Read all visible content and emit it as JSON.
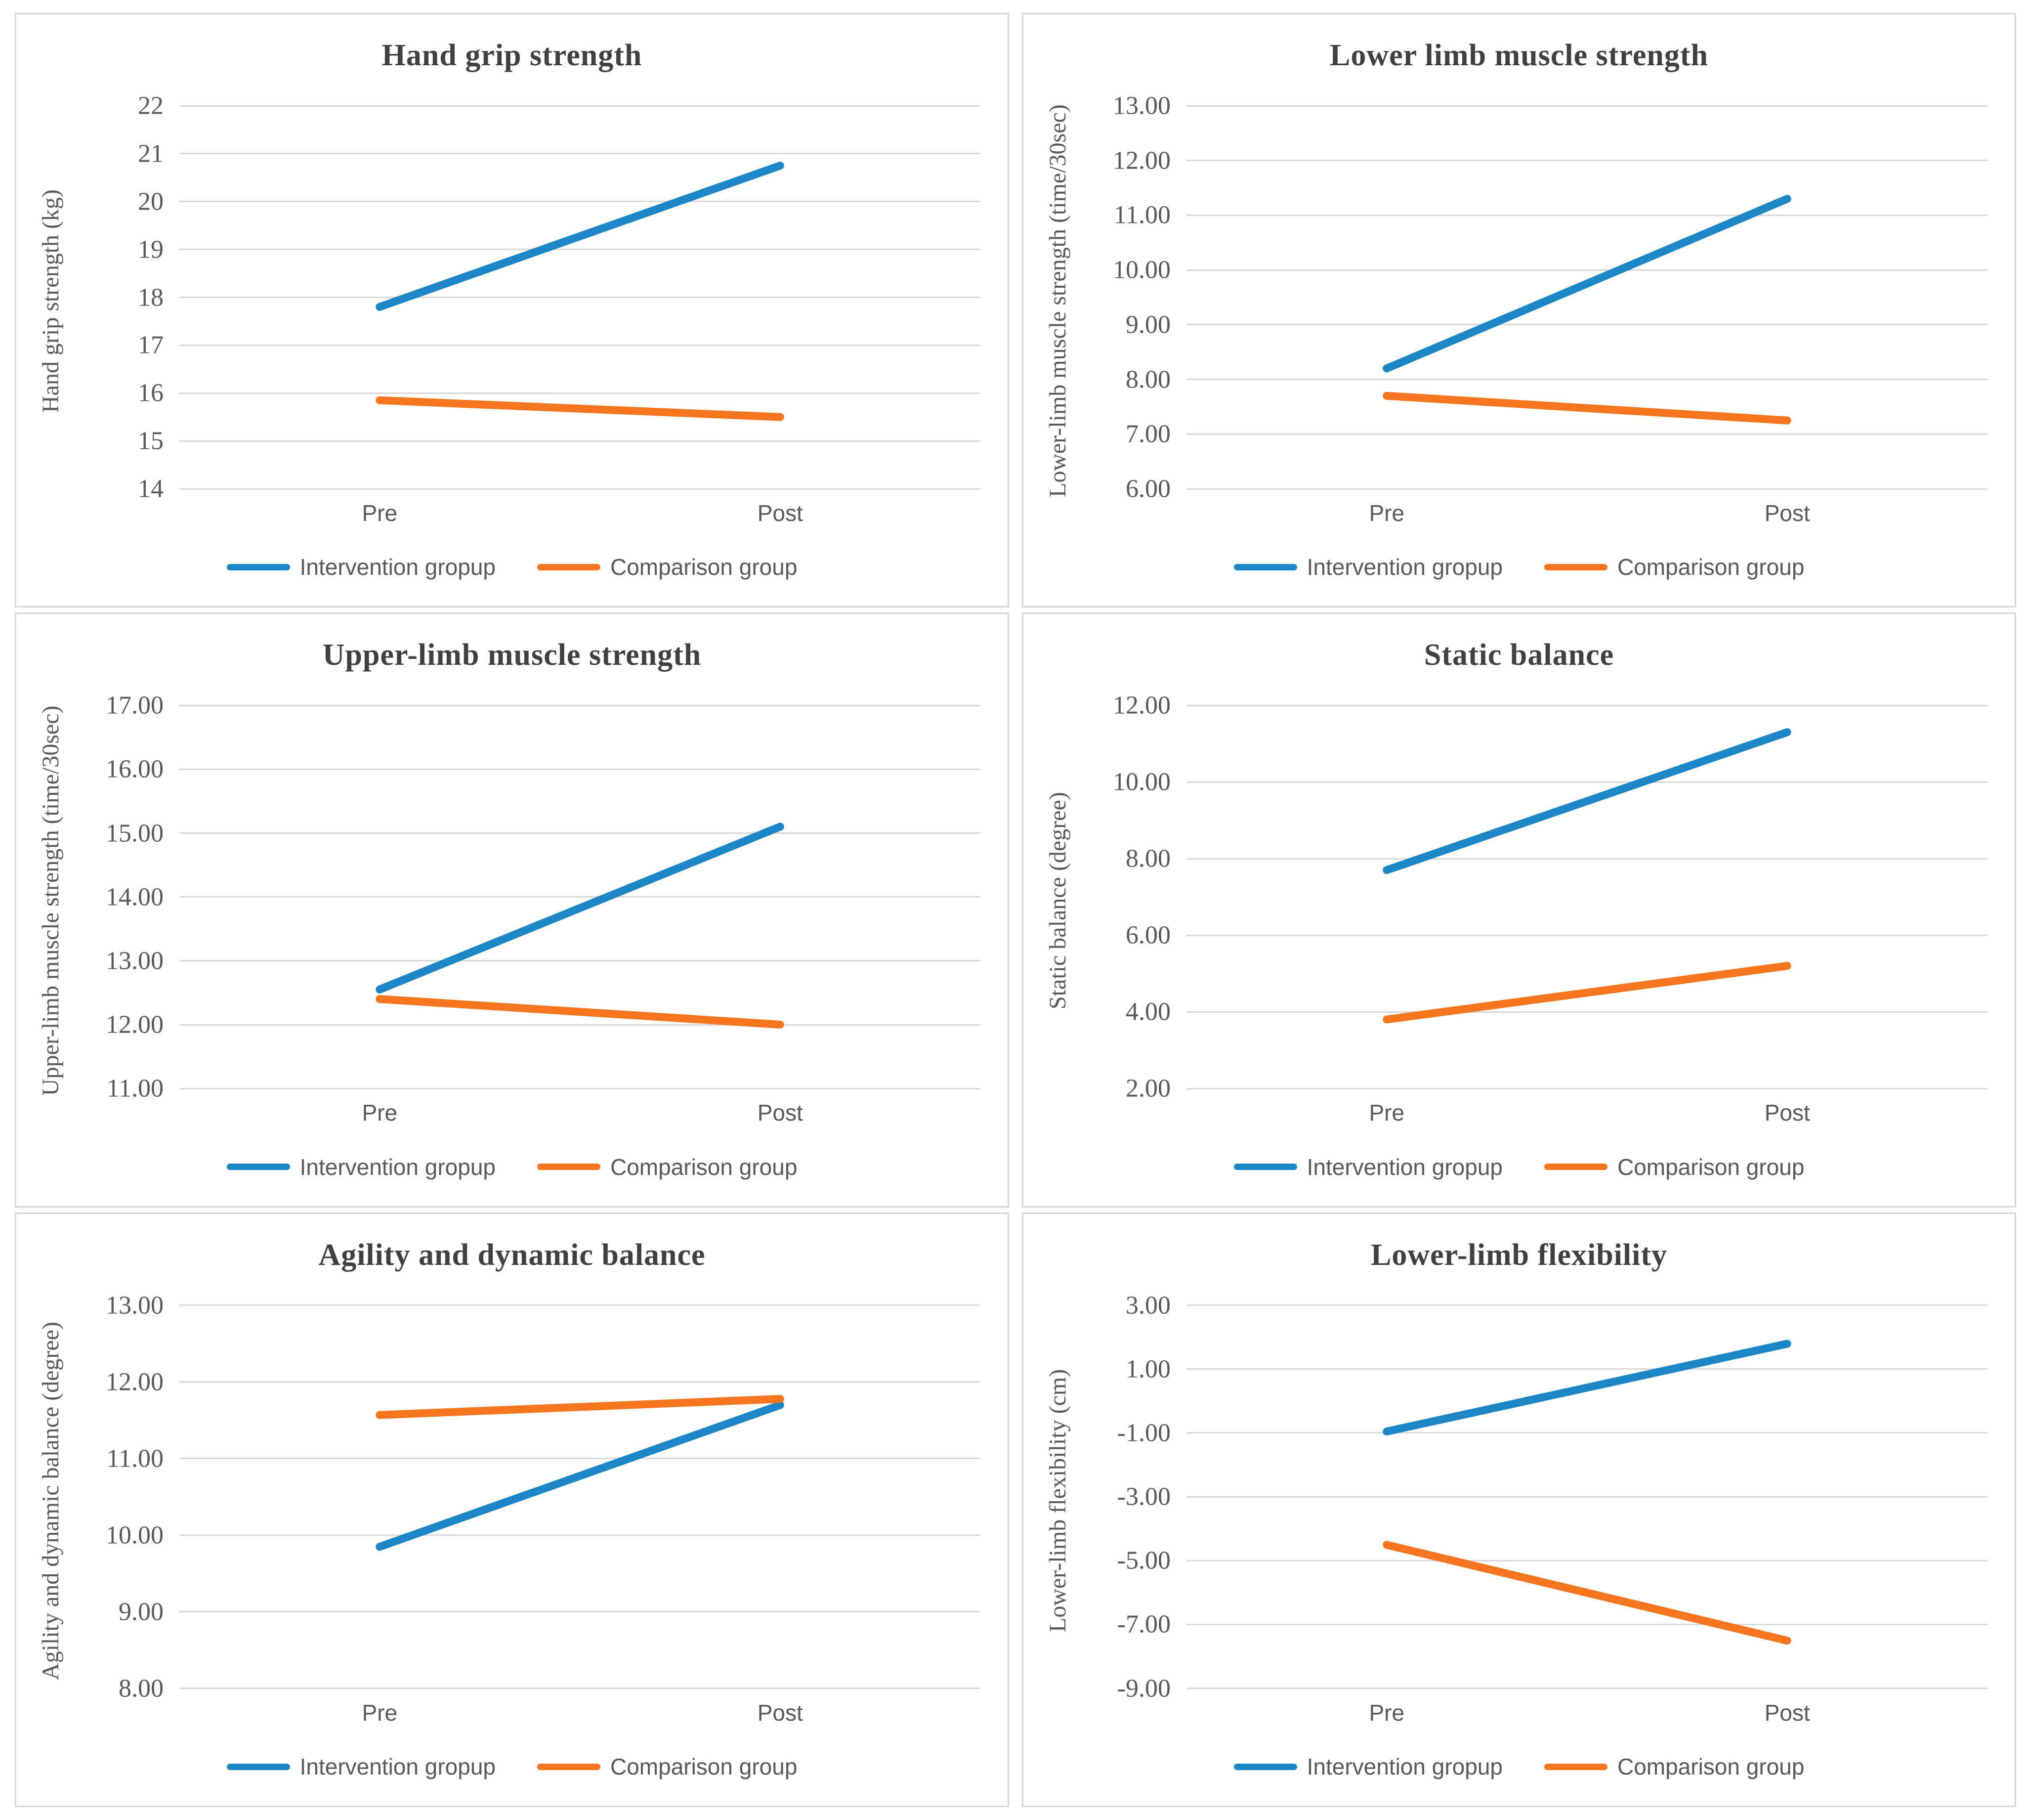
{
  "page": {
    "background": "#ffffff"
  },
  "colors": {
    "intervention": "#1d86c7",
    "comparison": "#f5761e",
    "gridline": "#d9d9d9",
    "axis_text": "#595959",
    "title_text": "#404040",
    "panel_border": "#d6d6d6"
  },
  "categories": [
    "Pre",
    "Post"
  ],
  "chart_data": [
    {
      "type": "line",
      "title": "Hand grip strength",
      "ylabel": "Hand grip strength (kg)",
      "xlabel": "",
      "categories": [
        "Pre",
        "Post"
      ],
      "ylim": [
        14,
        22
      ],
      "grid": true,
      "legend_position": "bottom",
      "y_ticks": [
        {
          "value": 14,
          "label": "14"
        },
        {
          "value": 15,
          "label": "15"
        },
        {
          "value": 16,
          "label": "16"
        },
        {
          "value": 17,
          "label": "17"
        },
        {
          "value": 18,
          "label": "18"
        },
        {
          "value": 19,
          "label": "19"
        },
        {
          "value": 20,
          "label": "20"
        },
        {
          "value": 21,
          "label": "21"
        },
        {
          "value": 22,
          "label": "22"
        }
      ],
      "series": [
        {
          "name": "Intervention gropup",
          "color_key": "intervention",
          "values": [
            17.8,
            20.75
          ]
        },
        {
          "name": "Comparison group",
          "color_key": "comparison",
          "values": [
            15.85,
            15.5
          ]
        }
      ]
    },
    {
      "type": "line",
      "title": "Lower limb muscle strength",
      "ylabel": "Lower-limb muscle strength (time/30sec)",
      "xlabel": "",
      "categories": [
        "Pre",
        "Post"
      ],
      "ylim": [
        6,
        13
      ],
      "grid": true,
      "legend_position": "bottom",
      "y_ticks": [
        {
          "value": 6,
          "label": "6.00"
        },
        {
          "value": 7,
          "label": "7.00"
        },
        {
          "value": 8,
          "label": "8.00"
        },
        {
          "value": 9,
          "label": "9.00"
        },
        {
          "value": 10,
          "label": "10.00"
        },
        {
          "value": 11,
          "label": "11.00"
        },
        {
          "value": 12,
          "label": "12.00"
        },
        {
          "value": 13,
          "label": "13.00"
        }
      ],
      "series": [
        {
          "name": "Intervention gropup",
          "color_key": "intervention",
          "values": [
            8.2,
            11.3
          ]
        },
        {
          "name": "Comparison group",
          "color_key": "comparison",
          "values": [
            7.7,
            7.25
          ]
        }
      ]
    },
    {
      "type": "line",
      "title": "Upper-limb muscle strength",
      "ylabel": "Upper-limb muscle strength (time/30sec)",
      "xlabel": "",
      "categories": [
        "Pre",
        "Post"
      ],
      "ylim": [
        11,
        17
      ],
      "grid": true,
      "legend_position": "bottom",
      "y_ticks": [
        {
          "value": 11,
          "label": "11.00"
        },
        {
          "value": 12,
          "label": "12.00"
        },
        {
          "value": 13,
          "label": "13.00"
        },
        {
          "value": 14,
          "label": "14.00"
        },
        {
          "value": 15,
          "label": "15.00"
        },
        {
          "value": 16,
          "label": "16.00"
        },
        {
          "value": 17,
          "label": "17.00"
        }
      ],
      "series": [
        {
          "name": "Intervention gropup",
          "color_key": "intervention",
          "values": [
            12.55,
            15.1
          ]
        },
        {
          "name": "Comparison group",
          "color_key": "comparison",
          "values": [
            12.4,
            12.0
          ]
        }
      ]
    },
    {
      "type": "line",
      "title": "Static balance",
      "ylabel": "Static balance (degree)",
      "xlabel": "",
      "categories": [
        "Pre",
        "Post"
      ],
      "ylim": [
        2,
        12
      ],
      "grid": true,
      "legend_position": "bottom",
      "y_ticks": [
        {
          "value": 2,
          "label": "2.00"
        },
        {
          "value": 4,
          "label": "4.00"
        },
        {
          "value": 6,
          "label": "6.00"
        },
        {
          "value": 8,
          "label": "8.00"
        },
        {
          "value": 10,
          "label": "10.00"
        },
        {
          "value": 12,
          "label": "12.00"
        }
      ],
      "series": [
        {
          "name": "Intervention gropup",
          "color_key": "intervention",
          "values": [
            7.7,
            11.3
          ]
        },
        {
          "name": "Comparison group",
          "color_key": "comparison",
          "values": [
            3.8,
            5.2
          ]
        }
      ]
    },
    {
      "type": "line",
      "title": "Agility and dynamic balance",
      "ylabel": "Agility and dynamic balance (degree)",
      "xlabel": "",
      "categories": [
        "Pre",
        "Post"
      ],
      "ylim": [
        8,
        13
      ],
      "grid": true,
      "legend_position": "bottom",
      "y_ticks": [
        {
          "value": 8,
          "label": "8.00"
        },
        {
          "value": 9,
          "label": "9.00"
        },
        {
          "value": 10,
          "label": "10.00"
        },
        {
          "value": 11,
          "label": "11.00"
        },
        {
          "value": 12,
          "label": "12.00"
        },
        {
          "value": 13,
          "label": "13.00"
        }
      ],
      "series": [
        {
          "name": "Intervention gropup",
          "color_key": "intervention",
          "values": [
            9.85,
            11.7
          ]
        },
        {
          "name": "Comparison group",
          "color_key": "comparison",
          "values": [
            11.57,
            11.78
          ]
        }
      ]
    },
    {
      "type": "line",
      "title": "Lower-limb flexibility",
      "ylabel": "Lower-limb flexibility (cm)",
      "xlabel": "",
      "categories": [
        "Pre",
        "Post"
      ],
      "ylim": [
        -9,
        3
      ],
      "grid": true,
      "legend_position": "bottom",
      "y_ticks": [
        {
          "value": -9,
          "label": "-9.00"
        },
        {
          "value": -7,
          "label": "-7.00"
        },
        {
          "value": -5,
          "label": "-5.00"
        },
        {
          "value": -3,
          "label": "-3.00"
        },
        {
          "value": -1,
          "label": "-1.00"
        },
        {
          "value": 1,
          "label": "1.00"
        },
        {
          "value": 3,
          "label": "3.00"
        }
      ],
      "series": [
        {
          "name": "Intervention gropup",
          "color_key": "intervention",
          "values": [
            -0.95,
            1.8
          ]
        },
        {
          "name": "Comparison group",
          "color_key": "comparison",
          "values": [
            -4.5,
            -7.5
          ]
        }
      ]
    }
  ]
}
